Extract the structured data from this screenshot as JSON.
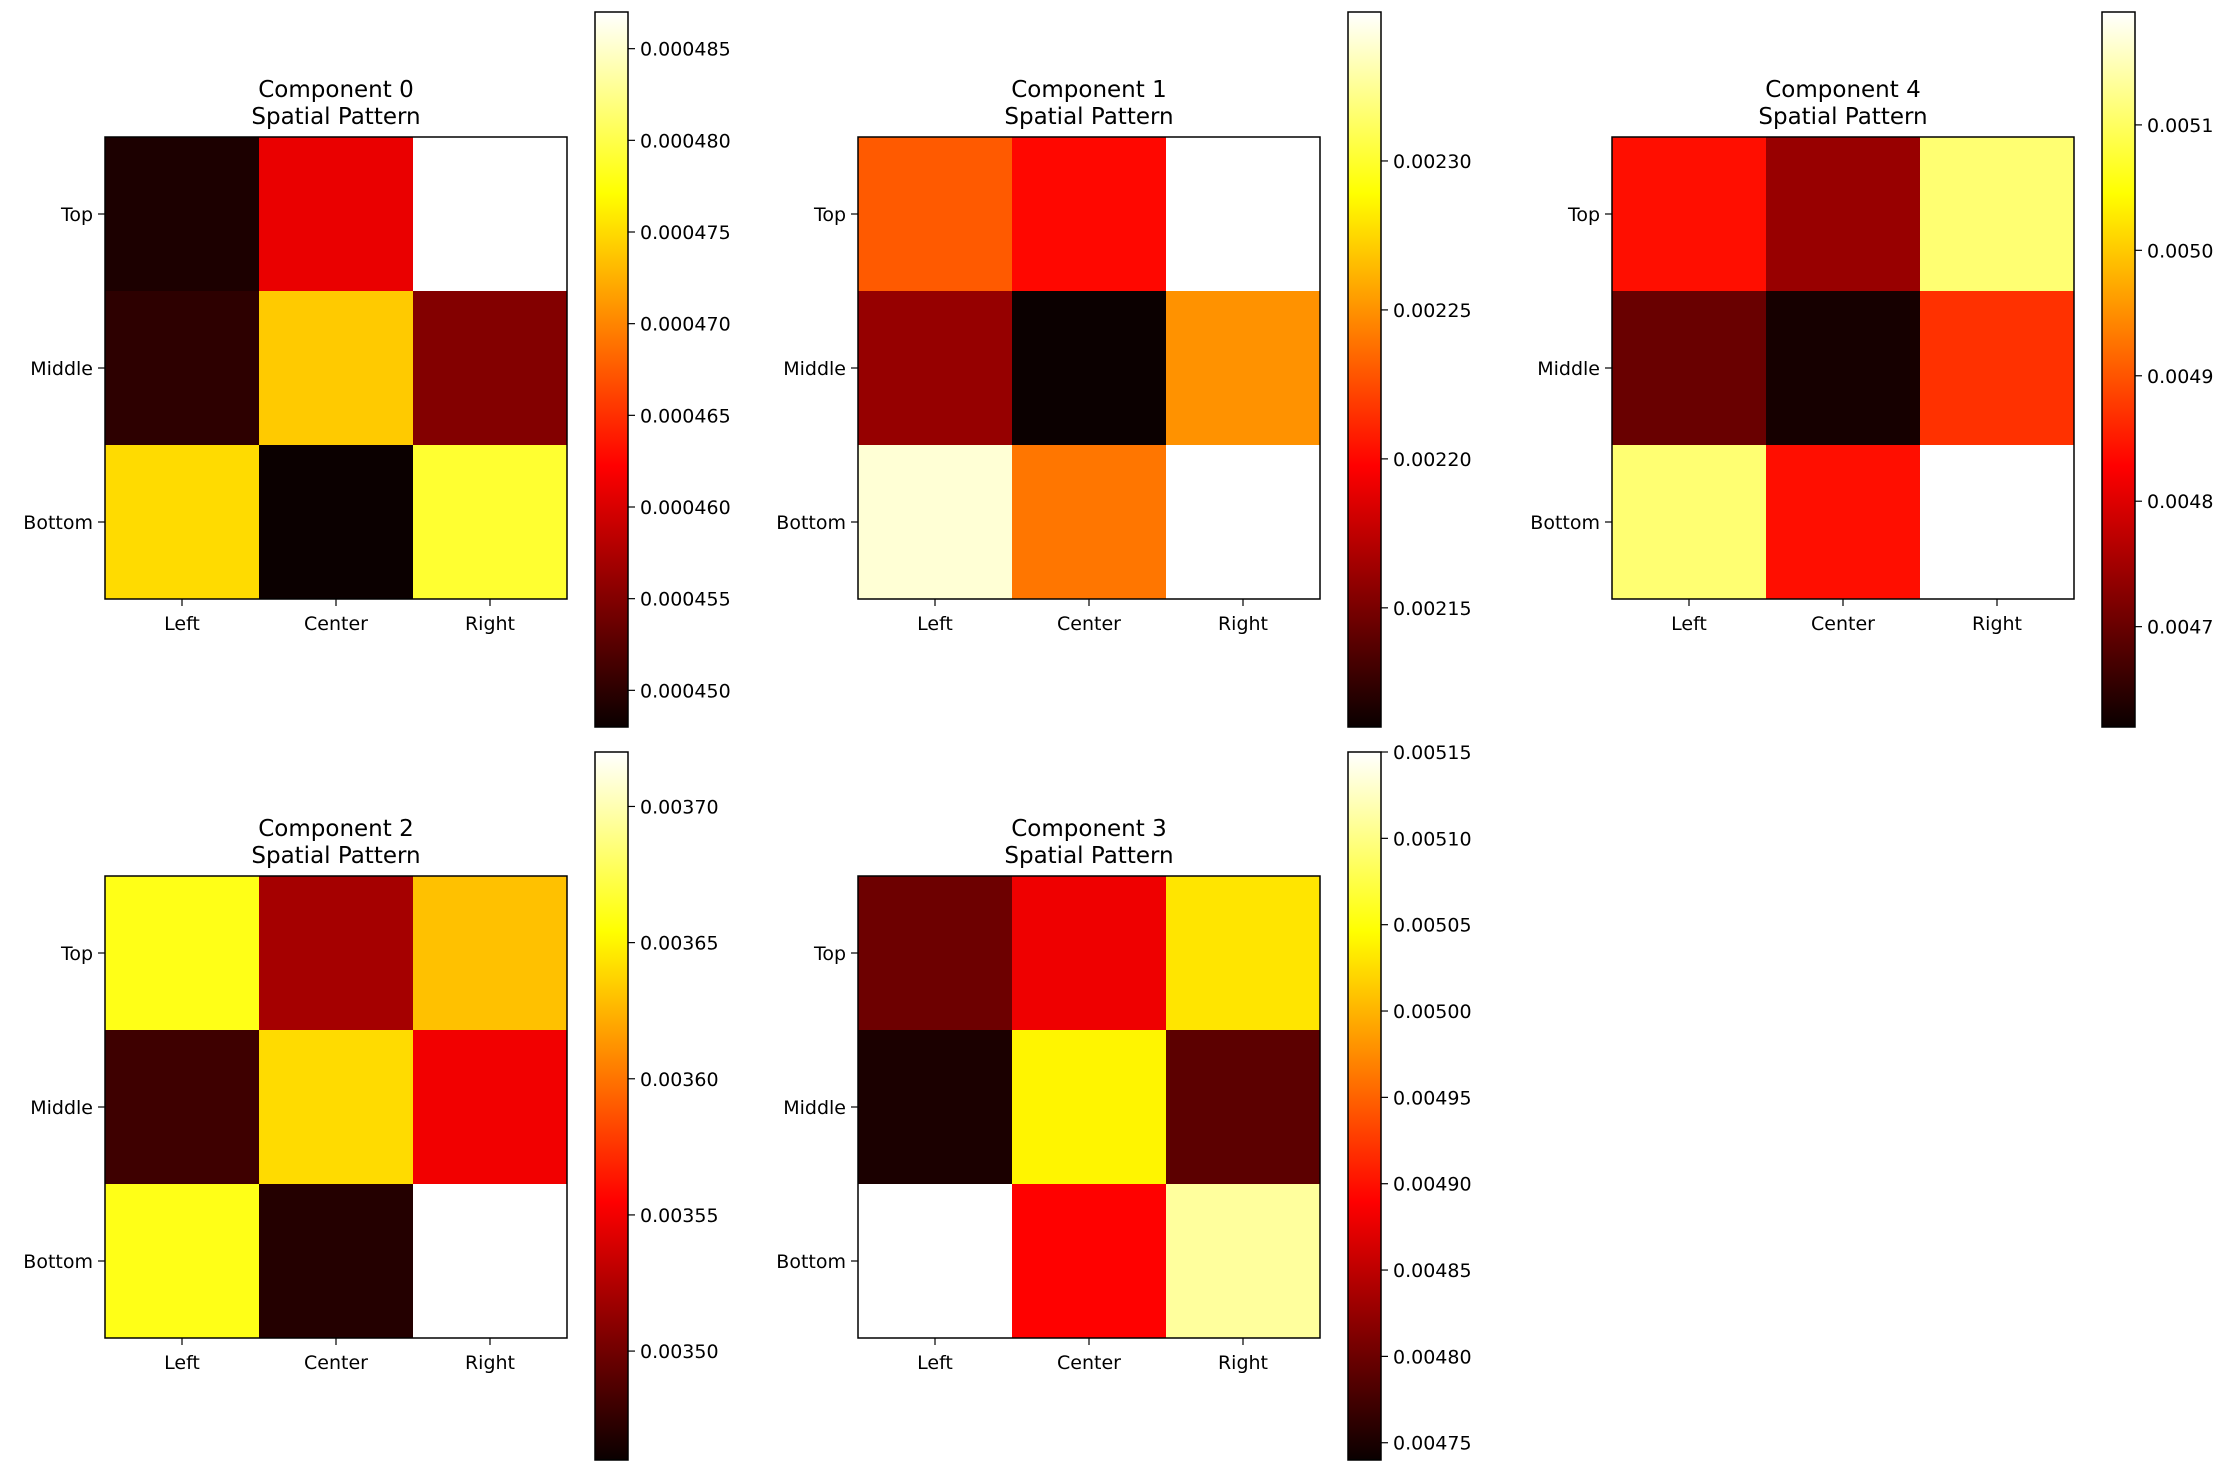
{
  "chart_data": [
    {
      "type": "heatmap",
      "title": "Component 0\nSpatial Pattern",
      "colormap": "hot",
      "x_tick_labels": [
        "Left",
        "Center",
        "Right"
      ],
      "y_tick_labels": [
        "Top",
        "Middle",
        "Bottom"
      ],
      "values": [
        [
          0.000449,
          0.000461,
          0.000487
        ],
        [
          0.00045,
          0.000474,
          0.000455
        ],
        [
          0.000475,
          0.000448,
          0.000479
        ]
      ],
      "color_range": [
        0.000448,
        0.000487
      ],
      "colorbar_ticks": [
        "0.000450",
        "0.000455",
        "0.000460",
        "0.000465",
        "0.000470",
        "0.000475",
        "0.000480",
        "0.000485"
      ]
    },
    {
      "type": "heatmap",
      "title": "Component 1\nSpatial Pattern",
      "colormap": "hot",
      "x_tick_labels": [
        "Left",
        "Center",
        "Right"
      ],
      "y_tick_labels": [
        "Top",
        "Middle",
        "Bottom"
      ],
      "values": [
        [
          0.00223,
          0.0022,
          0.00235
        ],
        [
          0.00216,
          0.00211,
          0.00225
        ],
        [
          0.00234,
          0.00224,
          0.00235
        ]
      ],
      "color_range": [
        0.00211,
        0.00235
      ],
      "colorbar_ticks": [
        "0.00215",
        "0.00220",
        "0.00225",
        "0.00230"
      ]
    },
    {
      "type": "heatmap",
      "title": "Component 4\nSpatial Pattern",
      "colormap": "hot",
      "x_tick_labels": [
        "Left",
        "Center",
        "Right"
      ],
      "y_tick_labels": [
        "Top",
        "Middle",
        "Bottom"
      ],
      "values": [
        [
          0.00484,
          0.00474,
          0.00511
        ],
        [
          0.0047,
          0.00463,
          0.00487
        ],
        [
          0.00511,
          0.00484,
          0.00519
        ]
      ],
      "color_range": [
        0.00462,
        0.00519
      ],
      "colorbar_ticks": [
        "0.0047",
        "0.0048",
        "0.0049",
        "0.0050",
        "0.0051"
      ]
    },
    {
      "type": "heatmap",
      "title": "Component 2\nSpatial Pattern",
      "colormap": "hot",
      "x_tick_labels": [
        "Left",
        "Center",
        "Right"
      ],
      "y_tick_labels": [
        "Top",
        "Middle",
        "Bottom"
      ],
      "values": [
        [
          0.00366,
          0.00352,
          0.00363
        ],
        [
          0.00348,
          0.00364,
          0.00355
        ],
        [
          0.00366,
          0.00347,
          0.00372
        ]
      ],
      "color_range": [
        0.00346,
        0.00372
      ],
      "colorbar_ticks": [
        "0.00350",
        "0.00355",
        "0.00360",
        "0.00365",
        "0.00370"
      ]
    },
    {
      "type": "heatmap",
      "title": "Component 3\nSpatial Pattern",
      "colormap": "hot",
      "x_tick_labels": [
        "Left",
        "Center",
        "Right"
      ],
      "y_tick_labels": [
        "Top",
        "Middle",
        "Bottom"
      ],
      "values": [
        [
          0.0048,
          0.00488,
          0.00503
        ],
        [
          0.00475,
          0.00504,
          0.00479
        ],
        [
          0.00515,
          0.00489,
          0.00511
        ]
      ],
      "color_range": [
        0.00474,
        0.00515
      ],
      "colorbar_ticks": [
        "0.00475",
        "0.00480",
        "0.00485",
        "0.00490",
        "0.00495",
        "0.00500",
        "0.00505",
        "0.00510",
        "0.00515"
      ]
    }
  ]
}
